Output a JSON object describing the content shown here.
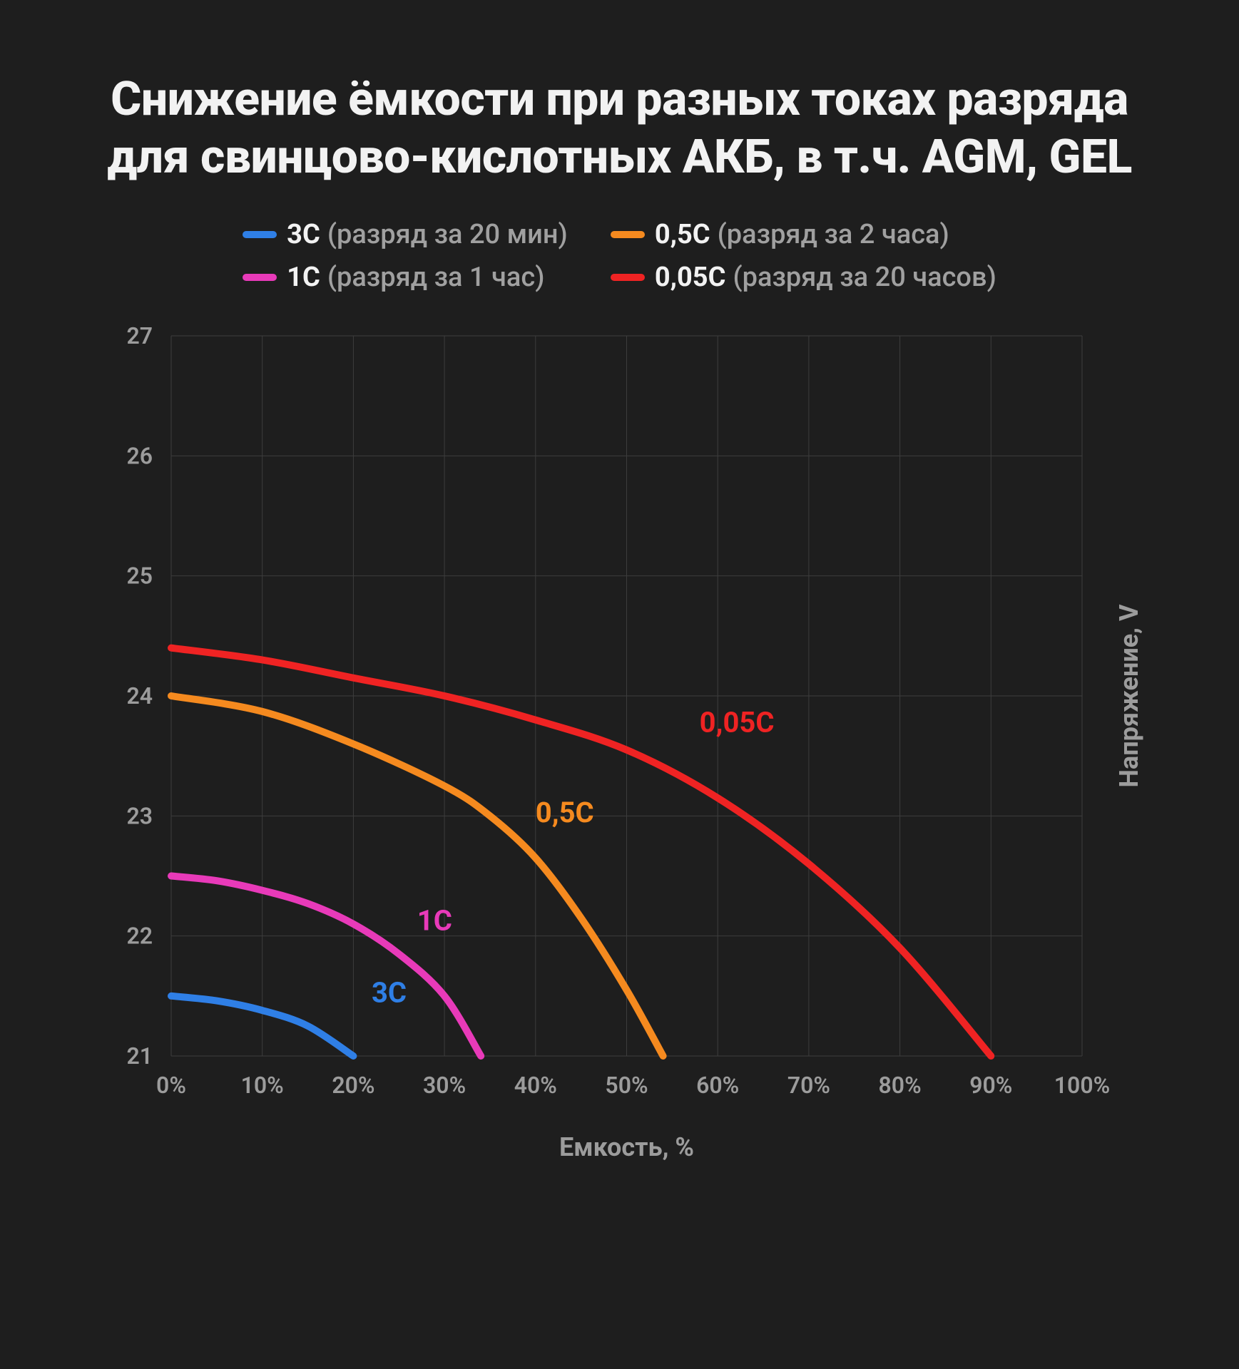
{
  "title": "Снижение ёмкости при разных токах разряда для свинцово-кислотных АКБ, в т.ч. AGM, GEL",
  "background_color": "#1e1e1e",
  "title_color": "#f2f2f2",
  "title_fontsize": 66,
  "legend": [
    {
      "name": "3C",
      "desc": "(разряд за 20 мин)",
      "color": "#2f7fe6"
    },
    {
      "name": "0,5C",
      "desc": "(разряд за 2 часа)",
      "color": "#f58a1f"
    },
    {
      "name": "1C",
      "desc": "(разряд за 1 час)",
      "color": "#e83ab9"
    },
    {
      "name": "0,05C",
      "desc": "(разряд за 20 часов)",
      "color": "#ef2323"
    }
  ],
  "chart": {
    "type": "line",
    "xlabel": "Емкость, %",
    "ylabel": "Напряжение, V",
    "xlim": [
      0,
      100
    ],
    "ylim": [
      21,
      27
    ],
    "xticks": [
      0,
      10,
      20,
      30,
      40,
      50,
      60,
      70,
      80,
      90,
      100
    ],
    "yticks": [
      21,
      22,
      23,
      24,
      25,
      26,
      27
    ],
    "xtick_labels": [
      "0%",
      "10%",
      "20%",
      "30%",
      "40%",
      "50%",
      "60%",
      "70%",
      "80%",
      "90%",
      "100%"
    ],
    "grid_color": "#3d3d3d",
    "grid_width": 1,
    "plot_bg": "#1e1e1e",
    "tick_label_color": "#9c9c9c",
    "tick_label_fontsize": 32,
    "axis_label_color": "#9c9c9c",
    "axis_label_fontsize": 36,
    "line_width": 10,
    "series": [
      {
        "id": "s3c",
        "name": "3C",
        "color": "#2f7fe6",
        "label_pos": {
          "x": 22,
          "y": 21.45
        },
        "points": [
          {
            "x": 0,
            "y": 21.5
          },
          {
            "x": 5,
            "y": 21.46
          },
          {
            "x": 10,
            "y": 21.38
          },
          {
            "x": 15,
            "y": 21.25
          },
          {
            "x": 20,
            "y": 21.0
          }
        ]
      },
      {
        "id": "s1c",
        "name": "1C",
        "color": "#e83ab9",
        "label_pos": {
          "x": 27,
          "y": 22.05
        },
        "points": [
          {
            "x": 0,
            "y": 22.5
          },
          {
            "x": 5,
            "y": 22.46
          },
          {
            "x": 10,
            "y": 22.38
          },
          {
            "x": 15,
            "y": 22.27
          },
          {
            "x": 20,
            "y": 22.1
          },
          {
            "x": 25,
            "y": 21.85
          },
          {
            "x": 30,
            "y": 21.5
          },
          {
            "x": 34,
            "y": 21.0
          }
        ]
      },
      {
        "id": "s05c",
        "name": "0,5C",
        "color": "#f58a1f",
        "label_pos": {
          "x": 40,
          "y": 22.95
        },
        "points": [
          {
            "x": 0,
            "y": 24.0
          },
          {
            "x": 10,
            "y": 23.87
          },
          {
            "x": 20,
            "y": 23.6
          },
          {
            "x": 30,
            "y": 23.25
          },
          {
            "x": 35,
            "y": 23.0
          },
          {
            "x": 40,
            "y": 22.65
          },
          {
            "x": 45,
            "y": 22.15
          },
          {
            "x": 50,
            "y": 21.55
          },
          {
            "x": 54,
            "y": 21.0
          }
        ]
      },
      {
        "id": "s005c",
        "name": "0,05C",
        "color": "#ef2323",
        "label_pos": {
          "x": 58,
          "y": 23.7
        },
        "points": [
          {
            "x": 0,
            "y": 24.4
          },
          {
            "x": 10,
            "y": 24.3
          },
          {
            "x": 20,
            "y": 24.15
          },
          {
            "x": 30,
            "y": 24.0
          },
          {
            "x": 40,
            "y": 23.8
          },
          {
            "x": 50,
            "y": 23.55
          },
          {
            "x": 60,
            "y": 23.15
          },
          {
            "x": 70,
            "y": 22.6
          },
          {
            "x": 80,
            "y": 21.9
          },
          {
            "x": 90,
            "y": 21.0
          }
        ]
      }
    ]
  }
}
